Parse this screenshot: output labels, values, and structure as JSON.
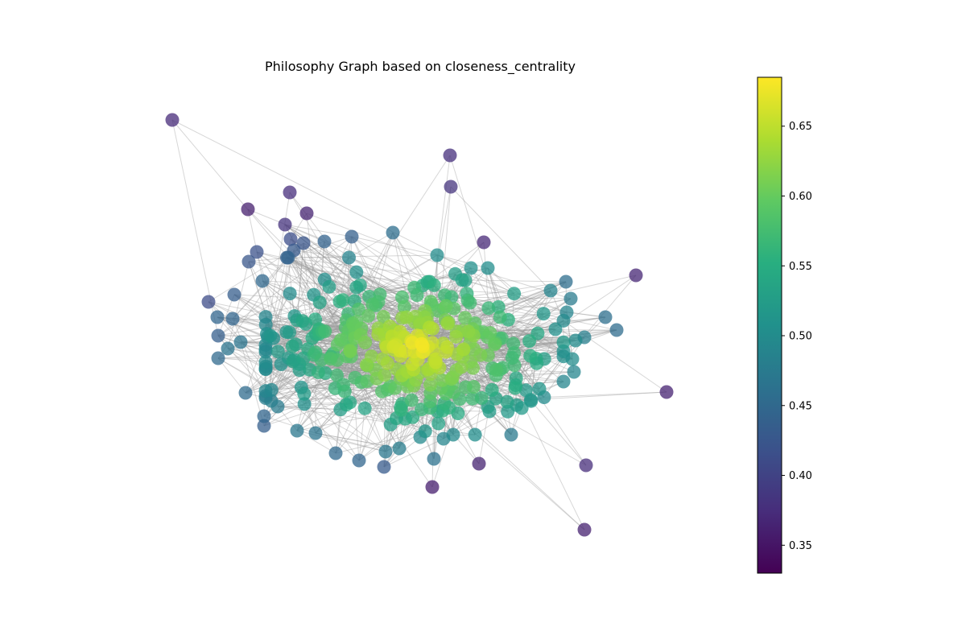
{
  "title": "Philosophy Graph based on closeness_centrality",
  "chart_data": {
    "type": "network",
    "metric": "closeness_centrality",
    "colormap": "viridis",
    "color_range": [
      0.33,
      0.685
    ],
    "colorbar_ticks": [
      {
        "value": 0.35,
        "label": "0.35"
      },
      {
        "value": 0.4,
        "label": "0.40"
      },
      {
        "value": 0.45,
        "label": "0.45"
      },
      {
        "value": 0.5,
        "label": "0.50"
      },
      {
        "value": 0.55,
        "label": "0.55"
      },
      {
        "value": 0.6,
        "label": "0.60"
      },
      {
        "value": 0.65,
        "label": "0.65"
      }
    ],
    "node_alpha": 0.75,
    "edge_color": "#9a9a9a"
  }
}
